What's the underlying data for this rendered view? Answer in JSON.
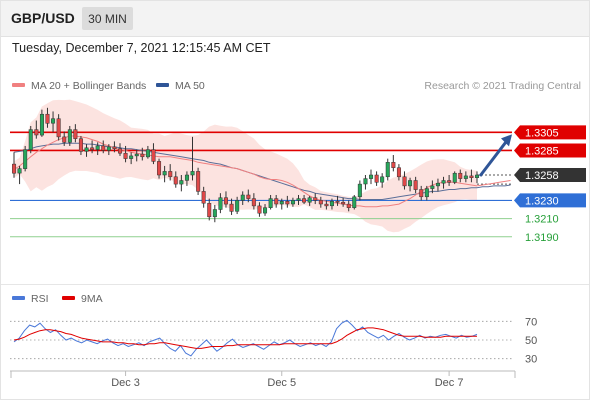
{
  "header": {
    "symbol": "GBP/USD",
    "timeframe": "30 MIN"
  },
  "timestamp": "Tuesday, December 7, 2021 12:15:45 AM CET",
  "legend": {
    "ma20": "MA 20 + Bollinger Bands",
    "ma50": "MA 50",
    "credit": "Research © 2021 Trading Central"
  },
  "rsi_legend": {
    "rsi": "RSI",
    "ma9": "9MA"
  },
  "colors": {
    "ma20": "#f08080",
    "ma50": "#2f5597",
    "resistance": "#e00000",
    "current": "#333333",
    "pivot": "#2f6fd6",
    "support": "#27a03a",
    "arrow": "#2f5597",
    "rsi": "#4a78d8",
    "rsi_ma": "#e00000"
  },
  "chart_data": {
    "type": "candlestick",
    "price_range": [
      1.316,
      1.3345
    ],
    "series": [
      {
        "name": "MA 20 + Bollinger Bands",
        "values": [
          1.3264,
          1.3268,
          1.3273,
          1.3278,
          1.3283,
          1.3287,
          1.3291,
          1.3294,
          1.3297,
          1.3299,
          1.3301,
          1.3301,
          1.33,
          1.3299,
          1.3297,
          1.3295,
          1.3292,
          1.329,
          1.3288,
          1.3286,
          1.3285,
          1.3283,
          1.3282,
          1.3281,
          1.328,
          1.3279,
          1.3278,
          1.3278,
          1.3278,
          1.3277,
          1.3276,
          1.3275,
          1.3274,
          1.3272,
          1.3271,
          1.327,
          1.3269,
          1.3268,
          1.3267,
          1.3266,
          1.3265,
          1.3263,
          1.3261,
          1.3259,
          1.3256,
          1.3254,
          1.3253,
          1.3253,
          1.3252,
          1.325,
          1.3247,
          1.3243,
          1.3239,
          1.3235,
          1.3232,
          1.323,
          1.3229,
          1.3228,
          1.3227,
          1.3226,
          1.3225,
          1.3224,
          1.3224,
          1.3223,
          1.3223,
          1.3223,
          1.3224,
          1.3224,
          1.3225,
          1.3226,
          1.3229,
          1.3232,
          1.3236,
          1.324,
          1.3244,
          1.3247,
          1.3249,
          1.325,
          1.325,
          1.325,
          1.3249,
          1.3248,
          1.3247,
          1.3246,
          1.3247,
          1.3248,
          1.3249,
          1.325,
          1.3251,
          1.3252
        ]
      },
      {
        "name": "MA 50",
        "values": [
          1.3283,
          1.3284,
          1.3285,
          1.3287,
          1.3289,
          1.329,
          1.3291,
          1.3292,
          1.3292,
          1.3293,
          1.3293,
          1.3293,
          1.3293,
          1.3292,
          1.3292,
          1.3291,
          1.329,
          1.3289,
          1.3289,
          1.3288,
          1.3287,
          1.3287,
          1.3286,
          1.3285,
          1.3284,
          1.3283,
          1.3282,
          1.3281,
          1.328,
          1.3279,
          1.3278,
          1.3277,
          1.3276,
          1.3275,
          1.3274,
          1.3272,
          1.3271,
          1.327,
          1.3268,
          1.3266,
          1.3265,
          1.3263,
          1.3261,
          1.3259,
          1.3257,
          1.3255,
          1.3253,
          1.3251,
          1.3249,
          1.3247,
          1.3245,
          1.3243,
          1.3241,
          1.324,
          1.3238,
          1.3237,
          1.3236,
          1.3235,
          1.3234,
          1.3233,
          1.3232,
          1.3232,
          1.3231,
          1.3231,
          1.3231,
          1.3231,
          1.3231,
          1.3232,
          1.3233,
          1.3234,
          1.3235,
          1.3236,
          1.3237,
          1.3238,
          1.3239,
          1.324,
          1.324,
          1.3241,
          1.3242,
          1.3242,
          1.3243,
          1.3243,
          1.3244,
          1.3244,
          1.3245,
          1.3245,
          1.3246,
          1.3246,
          1.3246,
          1.3247
        ]
      },
      {
        "name": "RSI",
        "values": [
          48,
          52,
          60,
          66,
          64,
          68,
          62,
          58,
          61,
          55,
          50,
          52,
          49,
          47,
          50,
          48,
          46,
          49,
          51,
          47,
          44,
          46,
          43,
          45,
          47,
          44,
          48,
          50,
          52,
          46,
          41,
          38,
          44,
          36,
          33,
          40,
          45,
          50,
          44,
          38,
          42,
          47,
          51,
          45,
          42,
          44,
          46,
          43,
          40,
          44,
          48,
          45,
          47,
          50,
          46,
          43,
          45,
          47,
          44,
          46,
          43,
          48,
          62,
          68,
          71,
          66,
          60,
          64,
          58,
          55,
          52,
          55,
          50,
          54,
          57,
          53,
          50,
          52,
          55,
          52,
          54,
          53,
          55,
          56,
          54,
          52,
          55,
          53,
          54,
          56
        ]
      },
      {
        "name": "9MA",
        "values": [
          50,
          51,
          53,
          56,
          58,
          60,
          61,
          61,
          60,
          59,
          57,
          56,
          54,
          52,
          51,
          50,
          49,
          48,
          48,
          48,
          47,
          47,
          46,
          46,
          45,
          45,
          46,
          46,
          47,
          47,
          46,
          45,
          44,
          43,
          42,
          41,
          41,
          42,
          43,
          43,
          43,
          44,
          44,
          45,
          45,
          45,
          45,
          45,
          45,
          45,
          45,
          45,
          46,
          46,
          46,
          46,
          46,
          46,
          46,
          46,
          46,
          46,
          48,
          51,
          55,
          58,
          61,
          62,
          63,
          63,
          62,
          61,
          59,
          57,
          55,
          54,
          54,
          54,
          54,
          53,
          53,
          53,
          53,
          54,
          54,
          54,
          54,
          54,
          54,
          54
        ]
      }
    ],
    "candles": [
      [
        1.327,
        1.3283,
        1.3255,
        1.326
      ],
      [
        1.326,
        1.3268,
        1.3248,
        1.3265
      ],
      [
        1.3265,
        1.329,
        1.3262,
        1.3286
      ],
      [
        1.3286,
        1.3312,
        1.3282,
        1.3308
      ],
      [
        1.3308,
        1.3318,
        1.3298,
        1.3302
      ],
      [
        1.3302,
        1.333,
        1.33,
        1.3325
      ],
      [
        1.3325,
        1.3332,
        1.331,
        1.3315
      ],
      [
        1.3315,
        1.3328,
        1.3305,
        1.332
      ],
      [
        1.332,
        1.3325,
        1.3296,
        1.33
      ],
      [
        1.33,
        1.3306,
        1.329,
        1.3294
      ],
      [
        1.3294,
        1.3312,
        1.329,
        1.3308
      ],
      [
        1.3308,
        1.3314,
        1.3294,
        1.3298
      ],
      [
        1.3298,
        1.3301,
        1.328,
        1.3284
      ],
      [
        1.3284,
        1.3292,
        1.3278,
        1.3288
      ],
      [
        1.3288,
        1.3296,
        1.3282,
        1.3286
      ],
      [
        1.3286,
        1.3294,
        1.328,
        1.329
      ],
      [
        1.329,
        1.3296,
        1.3282,
        1.3285
      ],
      [
        1.3285,
        1.3292,
        1.328,
        1.3289
      ],
      [
        1.3289,
        1.3295,
        1.3283,
        1.3287
      ],
      [
        1.3287,
        1.3293,
        1.3279,
        1.3282
      ],
      [
        1.3282,
        1.329,
        1.3272,
        1.3276
      ],
      [
        1.3276,
        1.3283,
        1.327,
        1.3279
      ],
      [
        1.3279,
        1.3286,
        1.3273,
        1.3281
      ],
      [
        1.3281,
        1.3288,
        1.3274,
        1.3278
      ],
      [
        1.3278,
        1.329,
        1.3276,
        1.3286
      ],
      [
        1.3286,
        1.3293,
        1.327,
        1.3273
      ],
      [
        1.3273,
        1.3276,
        1.3254,
        1.3258
      ],
      [
        1.3258,
        1.3268,
        1.325,
        1.3262
      ],
      [
        1.3262,
        1.327,
        1.3252,
        1.3256
      ],
      [
        1.3256,
        1.3262,
        1.3244,
        1.3248
      ],
      [
        1.3248,
        1.3258,
        1.324,
        1.3252
      ],
      [
        1.3252,
        1.3262,
        1.3246,
        1.3258
      ],
      [
        1.3258,
        1.33,
        1.3252,
        1.3262
      ],
      [
        1.3262,
        1.3266,
        1.3236,
        1.324
      ],
      [
        1.324,
        1.3245,
        1.3222,
        1.3227
      ],
      [
        1.3227,
        1.3232,
        1.3208,
        1.3212
      ],
      [
        1.3212,
        1.3225,
        1.3206,
        1.322
      ],
      [
        1.322,
        1.3238,
        1.3216,
        1.3233
      ],
      [
        1.3233,
        1.324,
        1.3222,
        1.3226
      ],
      [
        1.3226,
        1.3232,
        1.3214,
        1.3218
      ],
      [
        1.3218,
        1.3234,
        1.3215,
        1.323
      ],
      [
        1.323,
        1.324,
        1.3225,
        1.3236
      ],
      [
        1.3236,
        1.3242,
        1.3228,
        1.3232
      ],
      [
        1.3232,
        1.3238,
        1.322,
        1.3224
      ],
      [
        1.3224,
        1.3228,
        1.3212,
        1.3216
      ],
      [
        1.3216,
        1.3226,
        1.3213,
        1.3222
      ],
      [
        1.3222,
        1.3236,
        1.322,
        1.3232
      ],
      [
        1.3232,
        1.3236,
        1.3222,
        1.3226
      ],
      [
        1.3226,
        1.3232,
        1.322,
        1.3229
      ],
      [
        1.3229,
        1.3235,
        1.3222,
        1.3226
      ],
      [
        1.3226,
        1.3233,
        1.3223,
        1.323
      ],
      [
        1.323,
        1.3236,
        1.3225,
        1.3232
      ],
      [
        1.3232,
        1.3236,
        1.3226,
        1.3228
      ],
      [
        1.3228,
        1.3235,
        1.3224,
        1.3233
      ],
      [
        1.3233,
        1.3238,
        1.3226,
        1.323
      ],
      [
        1.323,
        1.3234,
        1.3222,
        1.3226
      ],
      [
        1.3226,
        1.323,
        1.322,
        1.3224
      ],
      [
        1.3224,
        1.3232,
        1.322,
        1.3229
      ],
      [
        1.3229,
        1.3235,
        1.3224,
        1.3228
      ],
      [
        1.3228,
        1.3233,
        1.3223,
        1.3226
      ],
      [
        1.3226,
        1.323,
        1.3218,
        1.3222
      ],
      [
        1.3222,
        1.3236,
        1.322,
        1.3234
      ],
      [
        1.3234,
        1.3252,
        1.323,
        1.3248
      ],
      [
        1.3248,
        1.3258,
        1.3242,
        1.3254
      ],
      [
        1.3254,
        1.3264,
        1.3248,
        1.3258
      ],
      [
        1.3258,
        1.3262,
        1.3246,
        1.325
      ],
      [
        1.325,
        1.326,
        1.3244,
        1.3256
      ],
      [
        1.3256,
        1.3276,
        1.3252,
        1.3272
      ],
      [
        1.3272,
        1.328,
        1.3262,
        1.3266
      ],
      [
        1.3266,
        1.327,
        1.3252,
        1.3256
      ],
      [
        1.3256,
        1.3262,
        1.3242,
        1.3246
      ],
      [
        1.3246,
        1.3255,
        1.324,
        1.3252
      ],
      [
        1.3252,
        1.3256,
        1.3238,
        1.3242
      ],
      [
        1.3242,
        1.3246,
        1.323,
        1.3234
      ],
      [
        1.3234,
        1.3246,
        1.323,
        1.3243
      ],
      [
        1.3243,
        1.3252,
        1.3238,
        1.3246
      ],
      [
        1.3246,
        1.3254,
        1.324,
        1.3249
      ],
      [
        1.3249,
        1.3256,
        1.3243,
        1.3252
      ],
      [
        1.3252,
        1.3258,
        1.3246,
        1.325
      ],
      [
        1.325,
        1.3262,
        1.3248,
        1.326
      ],
      [
        1.326,
        1.3264,
        1.325,
        1.3254
      ],
      [
        1.3254,
        1.3262,
        1.325,
        1.3257
      ],
      [
        1.3257,
        1.3264,
        1.325,
        1.3255
      ],
      [
        1.3255,
        1.3262,
        1.3249,
        1.3258
      ]
    ],
    "levels": [
      {
        "label": "1.3305",
        "value": 1.3305,
        "kind": "resistance"
      },
      {
        "label": "1.3285",
        "value": 1.3285,
        "kind": "resistance"
      },
      {
        "label": "1.3258",
        "value": 1.3258,
        "kind": "current"
      },
      {
        "label": "1.3230",
        "value": 1.323,
        "kind": "pivot"
      },
      {
        "label": "1.3210",
        "value": 1.321,
        "kind": "support"
      },
      {
        "label": "1.3190",
        "value": 1.319,
        "kind": "support"
      }
    ],
    "arrow": {
      "from": 1.3258,
      "to": 1.3305
    },
    "rsi_range": [
      20,
      80
    ],
    "rsi_ticks": [
      "70",
      "50",
      "30"
    ],
    "x_ticks": [
      {
        "label": "Dec 3",
        "index": 20
      },
      {
        "label": "Dec 5",
        "index": 48
      },
      {
        "label": "Dec 7",
        "index": 78
      }
    ]
  }
}
